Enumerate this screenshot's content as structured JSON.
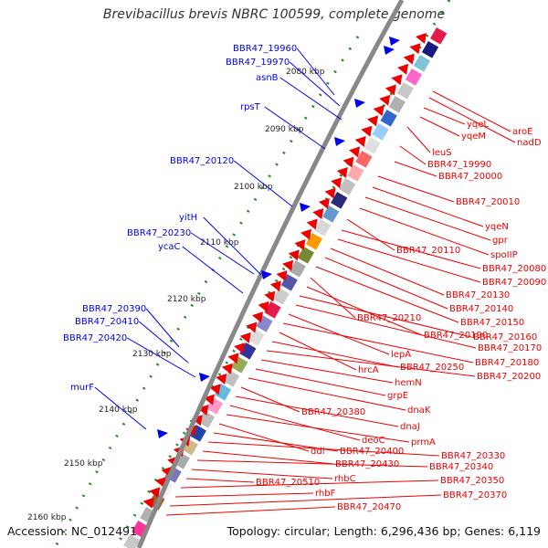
{
  "title": "Brevibacillus brevis NBRC 100599, complete genome",
  "accession": "Accession: NC_012491",
  "summary": "Topology: circular; Length: 6,296,436 bp; Genes: 6,119",
  "colors": {
    "gene_forward": "#0000ee",
    "gene_reverse": "#ee0000",
    "backbone": "#888888",
    "tick_dots": "#228b22"
  },
  "ticks": [
    "2080 kbp",
    "2090 kbp",
    "2100 kbp",
    "2110 kbp",
    "2120 kbp",
    "2130 kbp",
    "2140 kbp",
    "2150 kbp",
    "2160 kbp"
  ],
  "left_genes": [
    "BBR47_19960",
    "BBR47_19970",
    "asnB",
    "rpsT",
    "BBR47_20120",
    "yitH",
    "BBR47_20230",
    "ycaC",
    "BBR47_20390",
    "BBR47_20410",
    "BBR47_20420",
    "murF"
  ],
  "right_genes": [
    "aroE",
    "nadD",
    "yqeL",
    "yqeM",
    "leuS",
    "BBR47_19990",
    "BBR47_20000",
    "BBR47_20010",
    "yqeN",
    "gpr",
    "spoIIP",
    "BBR47_20110",
    "BBR47_20080",
    "BBR47_20090",
    "BBR47_20130",
    "BBR47_20140",
    "BBR47_20150",
    "BBR47_20210",
    "BBR47_20190",
    "BBR47_20160",
    "BBR47_20170",
    "lepA",
    "BBR47_20180",
    "hrcA",
    "BBR47_20250",
    "BBR47_20200",
    "hemN",
    "grpE",
    "dnaK",
    "BBR47_20380",
    "dnaJ",
    "deoC",
    "prmA",
    "ddl",
    "BBR47_20400",
    "BBR47_20330",
    "BBR47_20430",
    "BBR47_20340",
    "rhbC",
    "BBR47_20510",
    "BBR47_20350",
    "rhbF",
    "BBR47_20370",
    "BBR47_20470"
  ]
}
